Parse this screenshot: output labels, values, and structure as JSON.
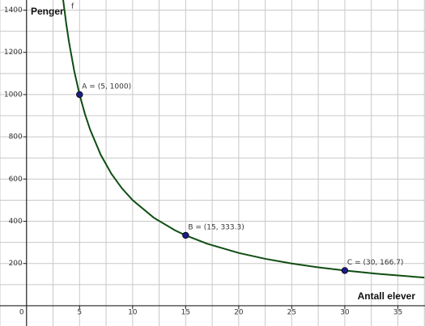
{
  "chart_data": {
    "type": "line",
    "x_label": "Antall elever",
    "y_label": "Penger",
    "xlim": [
      -2.5,
      37.56
    ],
    "ylim": [
      -96,
      1448
    ],
    "xticks": [
      0,
      5,
      10,
      15,
      20,
      25,
      30,
      35
    ],
    "yticks": [
      200,
      400,
      600,
      800,
      1000,
      1200,
      1400
    ],
    "xgrid": [
      -2.5,
      2.5,
      5,
      7.5,
      10,
      12.5,
      15,
      17.5,
      20,
      22.5,
      25,
      27.5,
      30,
      32.5,
      35,
      37.5
    ],
    "ygrid": [
      100,
      200,
      300,
      400,
      500,
      600,
      700,
      800,
      900,
      1000,
      1100,
      1200,
      1300,
      1400
    ],
    "grid": true,
    "x": [
      3.45,
      3.75,
      4,
      4.5,
      5,
      5.5,
      6,
      7,
      8,
      9,
      10,
      12,
      14,
      15,
      17,
      20,
      22.5,
      25,
      27.5,
      30,
      33,
      37.5
    ],
    "series": [
      {
        "name": "f",
        "color": "#0f4d12",
        "values": [
          1449.3,
          1333.3,
          1250,
          1111.1,
          1000,
          909.1,
          833.3,
          714.3,
          625,
          555.6,
          500,
          416.7,
          357.1,
          333.3,
          294.1,
          250,
          222.2,
          200,
          181.8,
          166.7,
          151.5,
          133.3
        ]
      }
    ],
    "points": [
      {
        "label": "A = (5, 1000)",
        "x": 5,
        "y": 1000
      },
      {
        "label": "B = (15, 333.3)",
        "x": 15,
        "y": 333.3
      },
      {
        "label": "C = (30, 166.7)",
        "x": 30,
        "y": 166.7
      }
    ],
    "point_color": "#1c1c8a"
  }
}
